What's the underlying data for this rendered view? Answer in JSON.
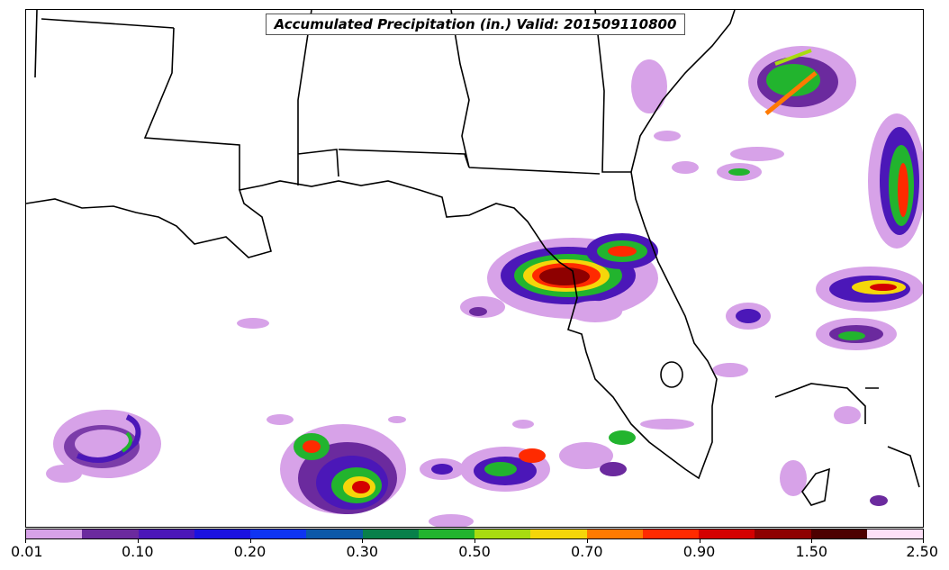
{
  "title": "Accumulated Precipitation (in.) Valid: 201509110800",
  "colorbar": {
    "colors": [
      "#d7a2e8",
      "#6b2a9e",
      "#4b17b8",
      "#1b12e0",
      "#0e34f2",
      "#0b58a8",
      "#08804a",
      "#22b42e",
      "#a8dc10",
      "#f5d60a",
      "#ff7a00",
      "#ff2a00",
      "#d40000",
      "#8e0000",
      "#4d0000",
      "#fde0f7"
    ],
    "tick_labels": [
      "0.01",
      "0.10",
      "0.20",
      "0.30",
      "0.50",
      "0.70",
      "0.90",
      "1.50",
      "2.50"
    ]
  },
  "map": {
    "region": "Gulf of Mexico and Southeastern United States",
    "features": [
      "state-borders",
      "coastline",
      "precipitation-field"
    ]
  }
}
